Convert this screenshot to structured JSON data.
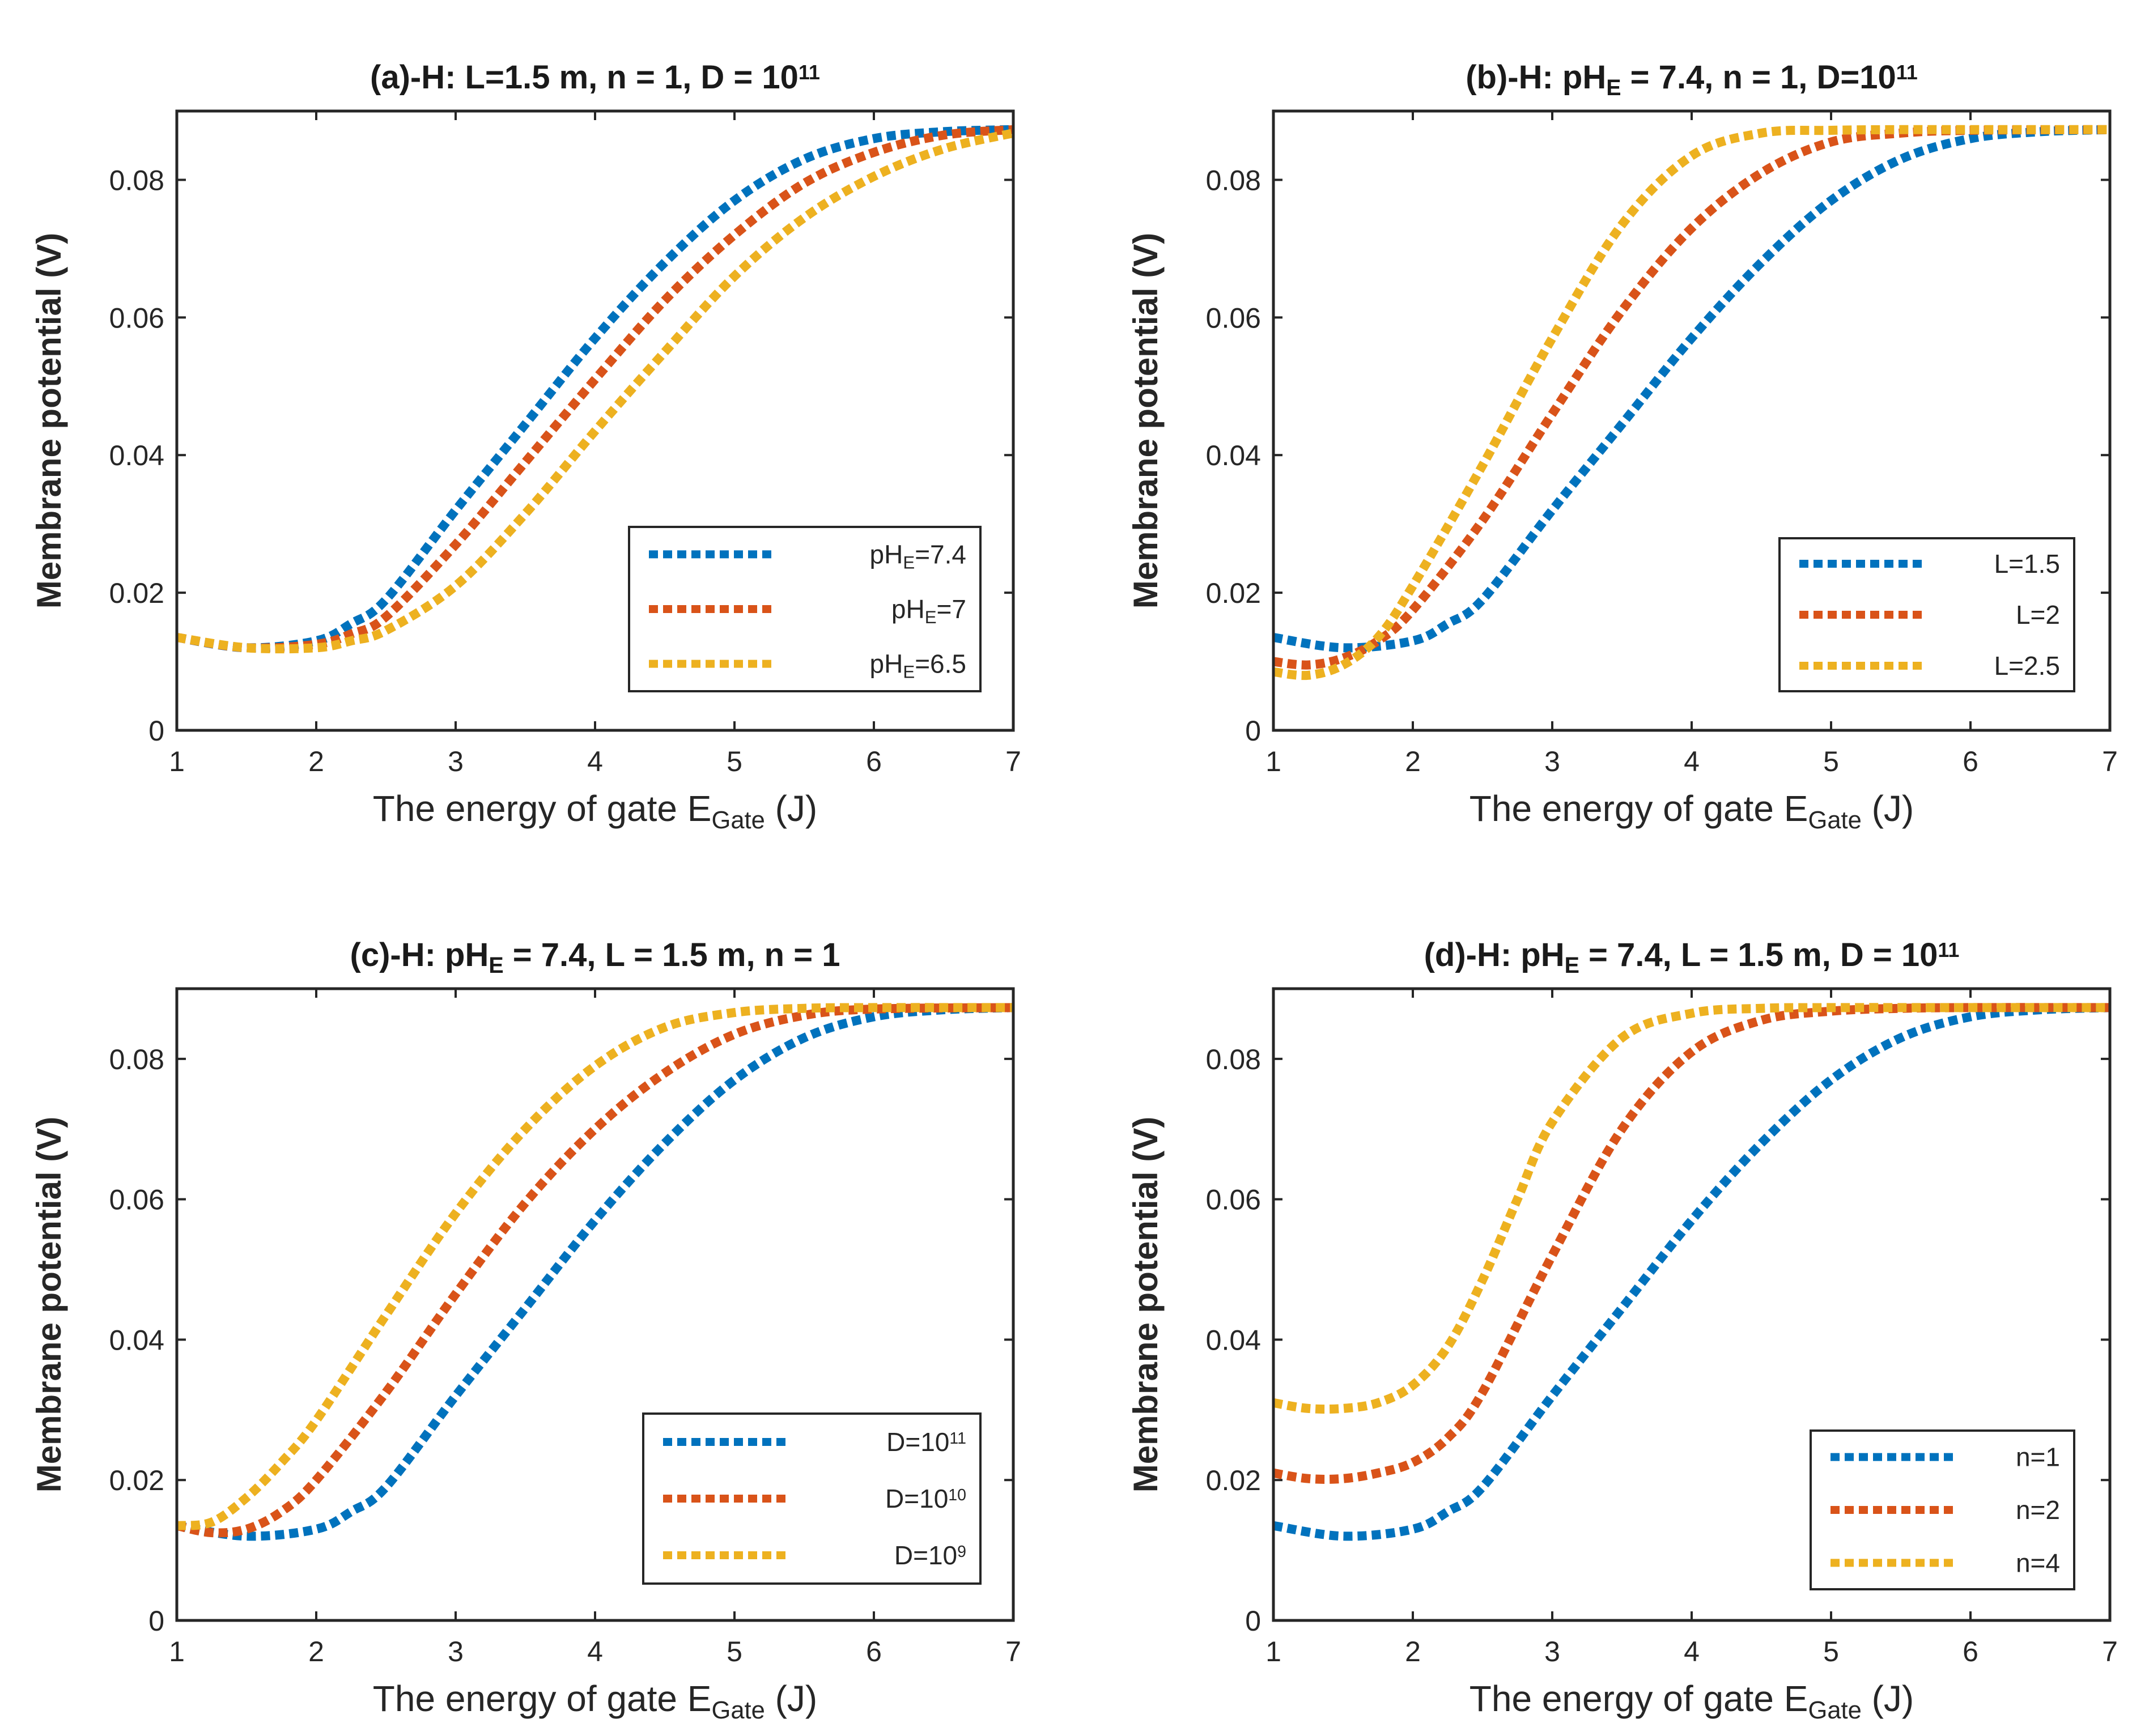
{
  "chart_data": [
    {
      "type": "line",
      "title_parts": [
        "(a)-H:  L=1.5  m,  n  =  1,  D  =  10",
        "11"
      ],
      "xlabel_parts": [
        "The  energy  of  gate    E",
        "Gate",
        "  (J)"
      ],
      "ylabel": "Membrane potential (V)",
      "xlim": [
        1,
        7
      ],
      "ylim": [
        0,
        0.09
      ],
      "xticks": [
        "1",
        "2",
        "3",
        "4",
        "5",
        "6",
        "7"
      ],
      "yticks": [
        "0",
        "0.02",
        "0.04",
        "0.06",
        "0.08"
      ],
      "legend_position": "lower-right",
      "series": [
        {
          "name_parts": [
            "pH",
            "E",
            "=7.4"
          ],
          "color": "#0072BD",
          "x": [
            1,
            1.5,
            2,
            2.25,
            2.5,
            3,
            3.5,
            4,
            4.5,
            5,
            5.5,
            6,
            6.5,
            7
          ],
          "y": [
            0.0135,
            0.012,
            0.013,
            0.0155,
            0.019,
            0.032,
            0.0445,
            0.057,
            0.068,
            0.077,
            0.083,
            0.086,
            0.087,
            0.0873
          ]
        },
        {
          "name_parts": [
            "pH",
            "E",
            "=7"
          ],
          "color": "#D95319",
          "x": [
            1,
            1.5,
            2,
            2.25,
            2.5,
            3,
            3.5,
            4,
            4.5,
            5,
            5.5,
            6,
            6.5,
            7
          ],
          "y": [
            0.0135,
            0.012,
            0.0125,
            0.014,
            0.0165,
            0.027,
            0.039,
            0.051,
            0.0625,
            0.072,
            0.0795,
            0.084,
            0.0865,
            0.0873
          ]
        },
        {
          "name_parts": [
            "pH",
            "E",
            "=6.5"
          ],
          "color": "#EDB120",
          "x": [
            1,
            1.5,
            2,
            2.25,
            2.5,
            3,
            3.5,
            4,
            4.5,
            5,
            5.5,
            6,
            6.5,
            7
          ],
          "y": [
            0.0135,
            0.012,
            0.012,
            0.013,
            0.0145,
            0.021,
            0.0315,
            0.0435,
            0.055,
            0.066,
            0.0745,
            0.0805,
            0.0845,
            0.0868
          ]
        }
      ]
    },
    {
      "type": "line",
      "title_parts": [
        "(b)-H:  pH",
        "E",
        "  =  7.4,  n  =  1,  D=10",
        "11"
      ],
      "xlabel_parts": [
        "The  energy  of  gate    E",
        "Gate",
        "  (J)"
      ],
      "ylabel": "Membrane potential (V)",
      "xlim": [
        1,
        7
      ],
      "ylim": [
        0,
        0.09
      ],
      "xticks": [
        "1",
        "2",
        "3",
        "4",
        "5",
        "6",
        "7"
      ],
      "yticks": [
        "0",
        "0.02",
        "0.04",
        "0.06",
        "0.08"
      ],
      "legend_position": "lower-right",
      "series": [
        {
          "name_parts": [
            "L=1.5"
          ],
          "color": "#0072BD",
          "x": [
            1,
            1.5,
            2,
            2.25,
            2.5,
            3,
            3.5,
            4,
            4.5,
            5,
            5.5,
            6,
            6.5,
            7
          ],
          "y": [
            0.0135,
            0.012,
            0.013,
            0.0155,
            0.019,
            0.032,
            0.0445,
            0.057,
            0.068,
            0.077,
            0.083,
            0.086,
            0.087,
            0.0873
          ]
        },
        {
          "name_parts": [
            "L=2"
          ],
          "color": "#D95319",
          "x": [
            1,
            1.25,
            1.5,
            1.75,
            2,
            2.5,
            3,
            3.5,
            4,
            4.5,
            5,
            5.5,
            6,
            7
          ],
          "y": [
            0.01,
            0.0095,
            0.0105,
            0.013,
            0.0175,
            0.0305,
            0.046,
            0.061,
            0.073,
            0.081,
            0.0855,
            0.0868,
            0.0872,
            0.0873
          ]
        },
        {
          "name_parts": [
            "L=2.5"
          ],
          "color": "#EDB120",
          "x": [
            1,
            1.25,
            1.5,
            1.75,
            2,
            2.5,
            3,
            3.5,
            4,
            4.5,
            5,
            5.5,
            6,
            7
          ],
          "y": [
            0.0085,
            0.008,
            0.0095,
            0.0135,
            0.021,
            0.0385,
            0.057,
            0.0735,
            0.0835,
            0.0868,
            0.0872,
            0.0873,
            0.0873,
            0.0873
          ]
        }
      ]
    },
    {
      "type": "line",
      "title_parts": [
        "(c)-H:  pH",
        "E",
        "  =  7.4,  L  =  1.5  m,  n  =  1"
      ],
      "xlabel_parts": [
        "The  energy  of  gate    E",
        "Gate",
        "  (J)"
      ],
      "ylabel": "Membrane potential (V)",
      "xlim": [
        1,
        7
      ],
      "ylim": [
        0,
        0.09
      ],
      "xticks": [
        "1",
        "2",
        "3",
        "4",
        "5",
        "6",
        "7"
      ],
      "yticks": [
        "0",
        "0.02",
        "0.04",
        "0.06",
        "0.08"
      ],
      "legend_position": "lower-right",
      "series": [
        {
          "name_parts": [
            "D=10",
            "11"
          ],
          "color": "#0072BD",
          "x": [
            1,
            1.5,
            2,
            2.25,
            2.5,
            3,
            3.5,
            4,
            4.5,
            5,
            5.5,
            6,
            6.5,
            7
          ],
          "y": [
            0.0135,
            0.012,
            0.013,
            0.0155,
            0.019,
            0.032,
            0.0445,
            0.057,
            0.068,
            0.077,
            0.083,
            0.086,
            0.087,
            0.0873
          ]
        },
        {
          "name_parts": [
            "D=10",
            "10"
          ],
          "color": "#D95319",
          "x": [
            1,
            1.25,
            1.5,
            1.75,
            2,
            2.5,
            3,
            3.5,
            4,
            4.5,
            5,
            5.5,
            6,
            7
          ],
          "y": [
            0.0135,
            0.0125,
            0.013,
            0.0155,
            0.02,
            0.0325,
            0.0465,
            0.0595,
            0.07,
            0.078,
            0.0835,
            0.0862,
            0.0871,
            0.0873
          ]
        },
        {
          "name_parts": [
            "D=10",
            "9"
          ],
          "color": "#EDB120",
          "x": [
            1,
            1.25,
            1.5,
            1.75,
            2,
            2.5,
            3,
            3.5,
            4,
            4.5,
            5,
            5.5,
            6,
            7
          ],
          "y": [
            0.0135,
            0.014,
            0.0175,
            0.0225,
            0.0285,
            0.0435,
            0.058,
            0.07,
            0.079,
            0.0845,
            0.0866,
            0.0872,
            0.0873,
            0.0873
          ]
        }
      ]
    },
    {
      "type": "line",
      "title_parts": [
        "(d)-H:  pH",
        "E",
        "  =  7.4,  L  =  1.5  m,  D  =  10",
        "11"
      ],
      "xlabel_parts": [
        "The  energy  of  gate    E",
        "Gate",
        "  (J)"
      ],
      "ylabel": "Membrane potential (V)",
      "xlim": [
        1,
        7
      ],
      "ylim": [
        0,
        0.09
      ],
      "xticks": [
        "1",
        "2",
        "3",
        "4",
        "5",
        "6",
        "7"
      ],
      "yticks": [
        "0",
        "0.02",
        "0.04",
        "0.06",
        "0.08"
      ],
      "legend_position": "lower-right",
      "series": [
        {
          "name_parts": [
            "n=1"
          ],
          "color": "#0072BD",
          "x": [
            1,
            1.5,
            2,
            2.25,
            2.5,
            3,
            3.5,
            4,
            4.5,
            5,
            5.5,
            6,
            6.5,
            7
          ],
          "y": [
            0.0135,
            0.012,
            0.013,
            0.0155,
            0.019,
            0.032,
            0.0445,
            0.057,
            0.068,
            0.077,
            0.083,
            0.086,
            0.087,
            0.0873
          ]
        },
        {
          "name_parts": [
            "n=2"
          ],
          "color": "#D95319",
          "x": [
            1,
            1.25,
            1.5,
            1.75,
            2,
            2.25,
            2.5,
            3,
            3.5,
            4,
            4.5,
            5,
            5.5,
            6,
            7
          ],
          "y": [
            0.021,
            0.0202,
            0.0202,
            0.021,
            0.0225,
            0.026,
            0.0325,
            0.052,
            0.07,
            0.081,
            0.0855,
            0.0868,
            0.0872,
            0.0873,
            0.0873
          ]
        },
        {
          "name_parts": [
            "n=4"
          ],
          "color": "#EDB120",
          "x": [
            1,
            1.25,
            1.5,
            1.75,
            2,
            2.25,
            2.5,
            2.75,
            3,
            3.5,
            4,
            4.5,
            5,
            6,
            7
          ],
          "y": [
            0.031,
            0.0302,
            0.0302,
            0.031,
            0.0335,
            0.039,
            0.0485,
            0.06,
            0.071,
            0.083,
            0.0865,
            0.0872,
            0.0873,
            0.0873,
            0.0873
          ]
        }
      ]
    }
  ]
}
